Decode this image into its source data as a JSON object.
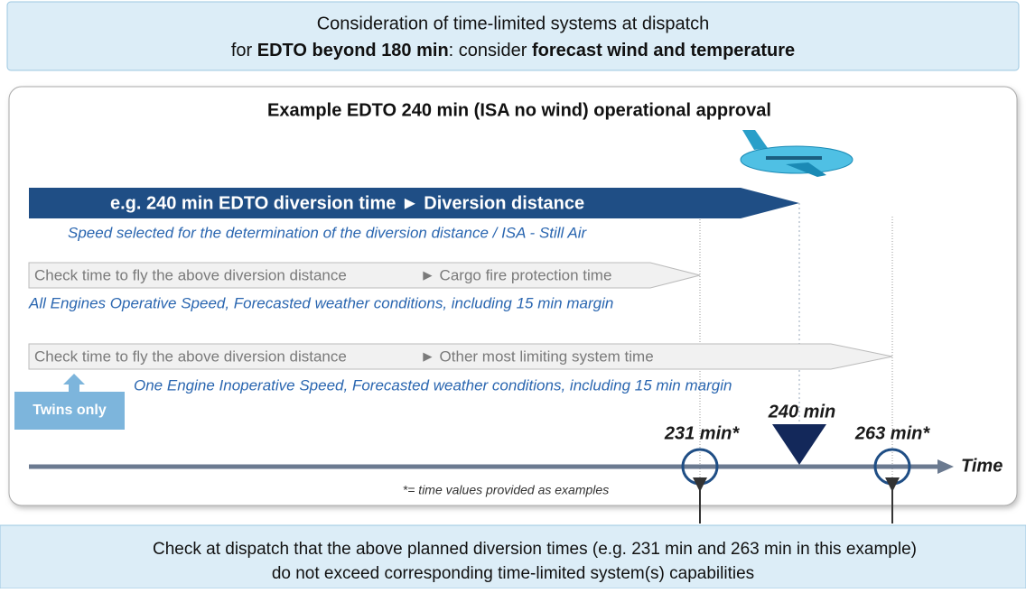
{
  "header": {
    "line1": "Consideration of time-limited systems at dispatch",
    "line2": [
      "for ",
      "EDTO beyond 180 min",
      ": consider ",
      "forecast wind and temperature"
    ]
  },
  "panel": {
    "title": "Example EDTO 240 min (ISA no wind) operational approval",
    "main_bar": {
      "label": "e.g. 240 min EDTO diversion time ► Diversion distance",
      "note": "Speed selected for the determination of the diversion distance / ISA - Still Air"
    },
    "cargo_bar": {
      "label": "Check time to fly the above diversion distance",
      "target": "► Cargo fire protection time",
      "note": "All Engines Operative Speed, Forecasted weather conditions, including 15 min margin"
    },
    "system_bar": {
      "label": "Check time to fly the above diversion distance",
      "target": "► Other most limiting system time",
      "note": "One Engine Inoperative Speed, Forecasted weather conditions, including 15 min margin"
    },
    "twins": "Twins only",
    "timeline": {
      "markers": [
        "231 min*",
        "240 min",
        "263 min*"
      ],
      "axis_label": "Time",
      "footnote": "*= time values provided as examples"
    }
  },
  "footer": {
    "line1": "Check at dispatch that the above planned diversion times (e.g. 231 min and 263 min in this example)",
    "line2": "do not exceed corresponding time-limited system(s) capabilities"
  }
}
